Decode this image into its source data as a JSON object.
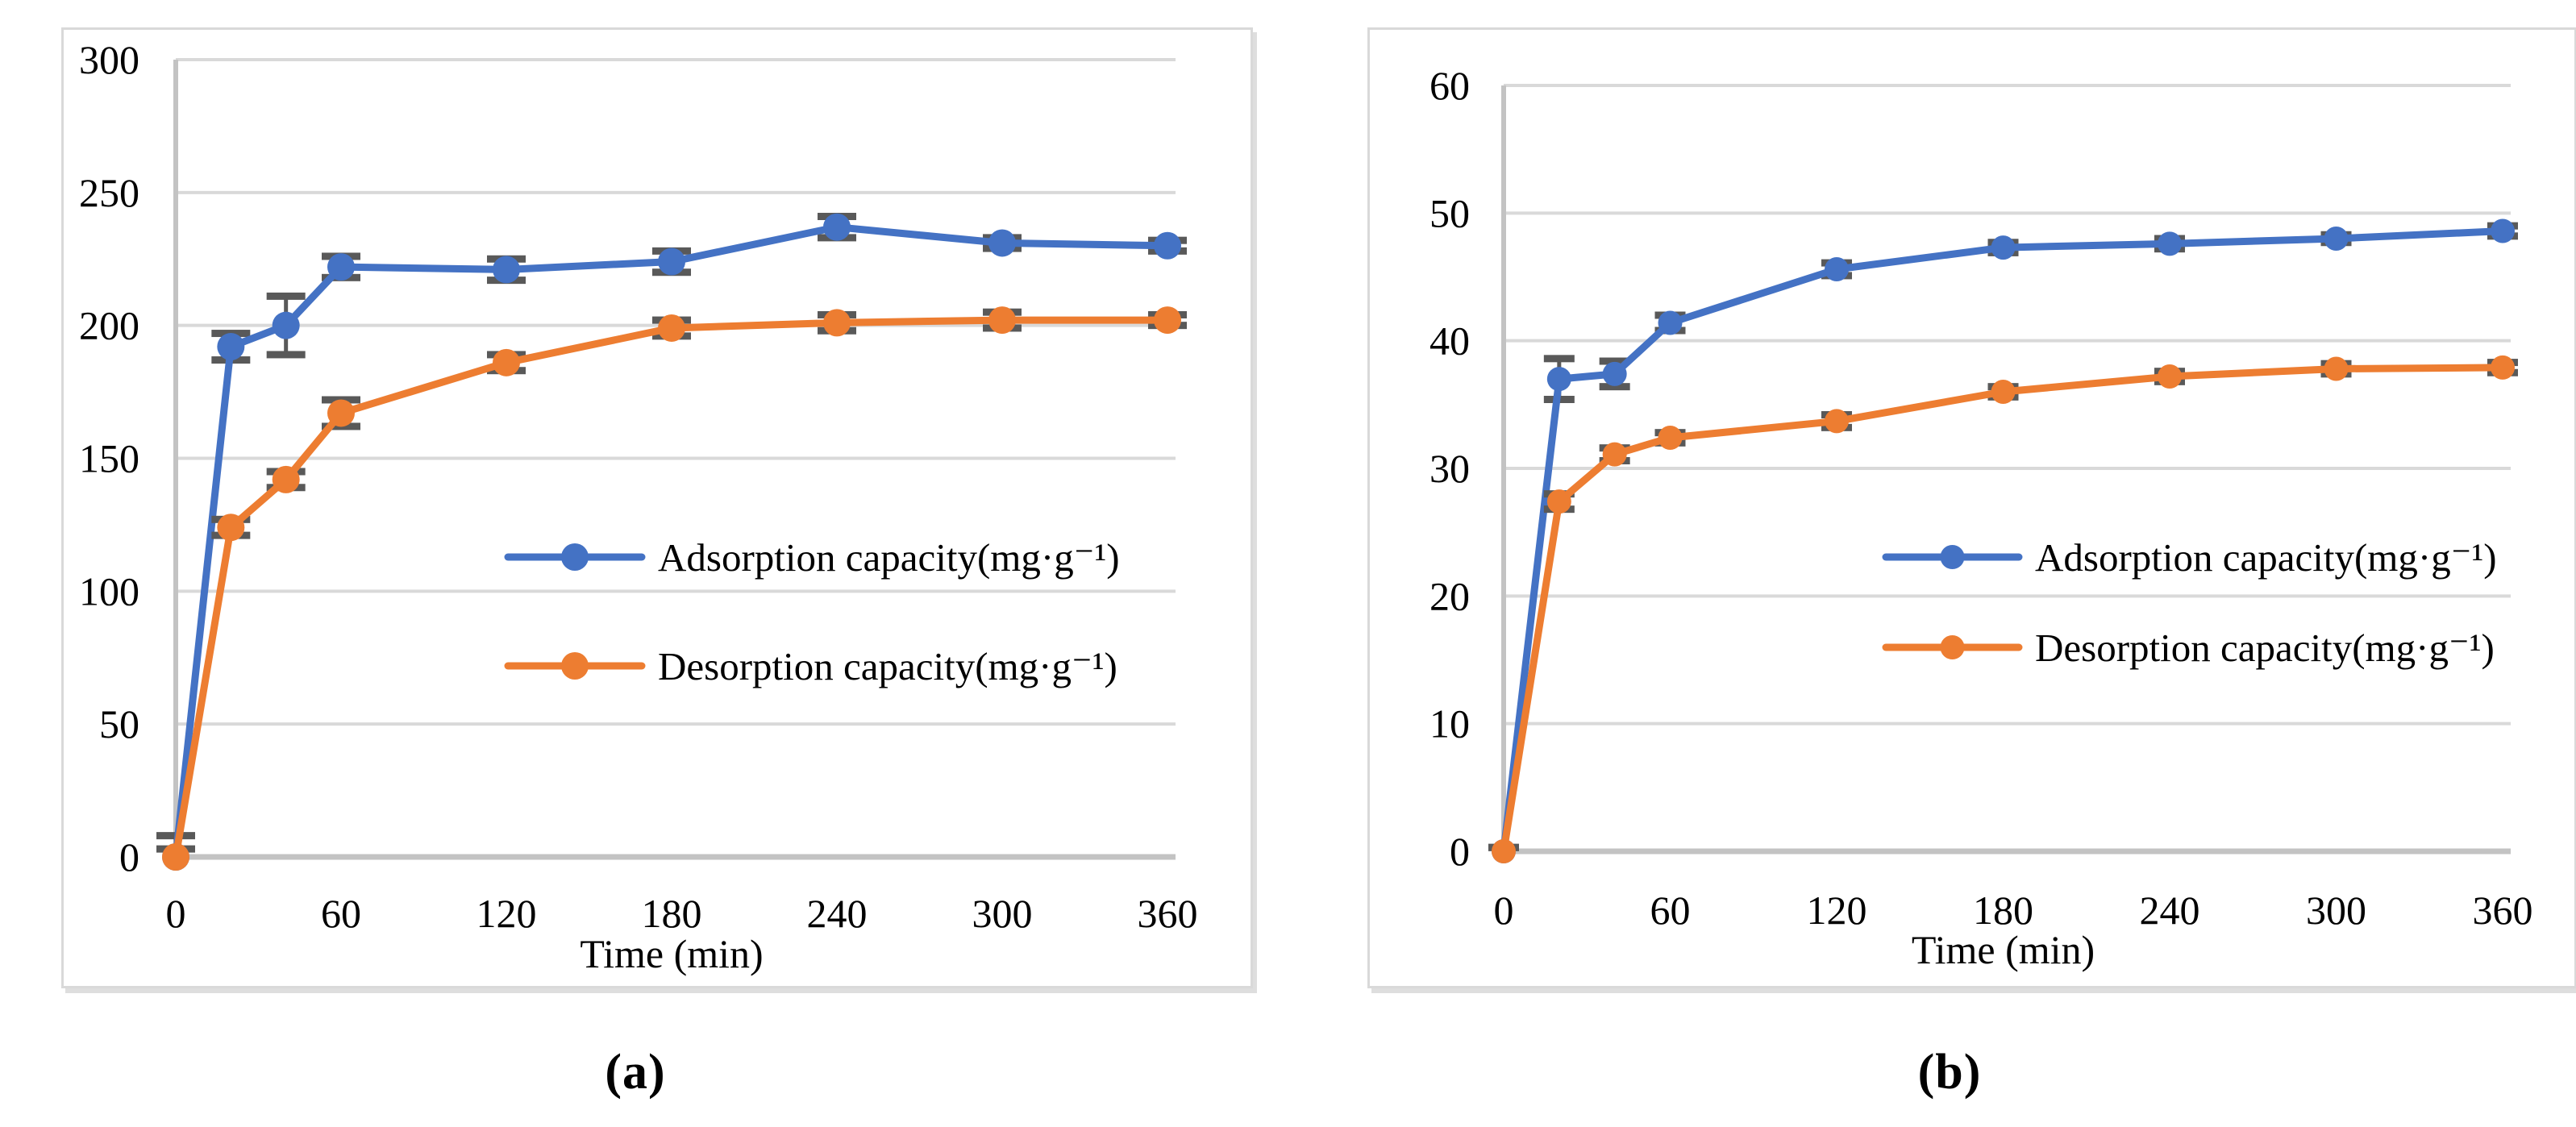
{
  "figure": {
    "background": "#ffffff",
    "caption_a": "(a)",
    "caption_b": "(b)"
  },
  "palette": {
    "adsorption": "#4472C4",
    "desorption": "#ED7D31",
    "error_bar": "#595959",
    "gridline": "#D9D9D9",
    "axis_line": "#C3C3C3",
    "text": "#000000",
    "panel_border": "#D9D9D9"
  },
  "chart_data": [
    {
      "id": "a",
      "type": "line",
      "caption": "(a)",
      "xlabel": "Time (min)",
      "x": [
        0,
        20,
        40,
        60,
        120,
        180,
        240,
        300,
        360
      ],
      "x_ticks": [
        0,
        60,
        120,
        180,
        240,
        300,
        360
      ],
      "ylim": [
        0,
        300
      ],
      "y_ticks": [
        0,
        50,
        100,
        150,
        200,
        250,
        300
      ],
      "xlim": [
        0,
        360
      ],
      "grid": true,
      "legend_position": "center-right-inside",
      "series": [
        {
          "name": "Adsorption capacity(mg·g⁻¹)",
          "color": "adsorption",
          "values": [
            0,
            192,
            200,
            222,
            221,
            224,
            237,
            231,
            230
          ],
          "errors": [
            8,
            5,
            11,
            4,
            4,
            4,
            4,
            2,
            2
          ]
        },
        {
          "name": "Desorption capacity(mg·g⁻¹)",
          "color": "desorption",
          "values": [
            0,
            124,
            142,
            167,
            186,
            199,
            201,
            202,
            202
          ],
          "errors": [
            3,
            3,
            3,
            5,
            3,
            3,
            3,
            3,
            2
          ]
        }
      ]
    },
    {
      "id": "b",
      "type": "line",
      "caption": "(b)",
      "xlabel": "Time (min)",
      "x": [
        0,
        20,
        40,
        60,
        120,
        180,
        240,
        300,
        360
      ],
      "x_ticks": [
        0,
        60,
        120,
        180,
        240,
        300,
        360
      ],
      "ylim": [
        0,
        60
      ],
      "y_ticks": [
        0,
        10,
        20,
        30,
        40,
        50,
        60
      ],
      "xlim": [
        0,
        360
      ],
      "grid": true,
      "legend_position": "center-right-inside",
      "series": [
        {
          "name": "Adsorption capacity(mg·g⁻¹)",
          "color": "adsorption",
          "values": [
            0,
            37.0,
            37.4,
            41.4,
            45.6,
            47.3,
            47.6,
            48.0,
            48.6
          ],
          "errors": [
            0.3,
            1.6,
            1.0,
            0.6,
            0.5,
            0.4,
            0.4,
            0.3,
            0.4
          ]
        },
        {
          "name": "Desorption capacity(mg·g⁻¹)",
          "color": "desorption",
          "values": [
            0,
            27.4,
            31.1,
            32.4,
            33.7,
            36.0,
            37.2,
            37.8,
            37.9
          ],
          "errors": [
            0.3,
            0.6,
            0.5,
            0.4,
            0.5,
            0.4,
            0.4,
            0.4,
            0.4
          ]
        }
      ]
    }
  ]
}
